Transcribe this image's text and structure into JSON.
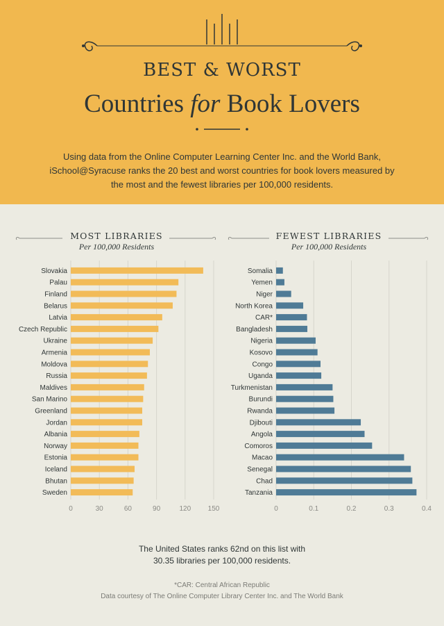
{
  "header": {
    "title_line1": "BEST & WORST",
    "title_part1": "Countries ",
    "title_em": "for",
    "title_part2": " Book Lovers",
    "intro": "Using data from the Online Computer Learning Center Inc. and the World Bank, iSchool@Syracuse ranks the 20 best and worst countries for book lovers measured by the most and the fewest libraries per 100,000 residents.",
    "colors": {
      "background": "#f1b84f",
      "text": "#2f3636"
    }
  },
  "chart_data": [
    {
      "type": "bar",
      "orientation": "horizontal",
      "title": "MOST LIBRARIES",
      "subtitle": "Per 100,000 Residents",
      "color": "#f2bb58",
      "categories": [
        "Slovakia",
        "Palau",
        "Finland",
        "Belarus",
        "Latvia",
        "Czech Republic",
        "Ukraine",
        "Armenia",
        "Moldova",
        "Russia",
        "Maldives",
        "San Marino",
        "Greenland",
        "Jordan",
        "Albania",
        "Norway",
        "Estonia",
        "Iceland",
        "Bhutan",
        "Sweden"
      ],
      "values": [
        139,
        113,
        111,
        107,
        96,
        92,
        86,
        83,
        81,
        80,
        77,
        76,
        75,
        75,
        72,
        71,
        71,
        67,
        66,
        65
      ],
      "xlim": [
        0,
        150
      ],
      "xticks": [
        "0",
        "30",
        "60",
        "90",
        "120",
        "150"
      ]
    },
    {
      "type": "bar",
      "orientation": "horizontal",
      "title": "FEWEST LIBRARIES",
      "subtitle": "Per 100,000 Residents",
      "color": "#4f7b96",
      "categories": [
        "Somalia",
        "Yemen",
        "Niger",
        "North Korea",
        "CAR*",
        "Bangladesh",
        "Nigeria",
        "Kosovo",
        "Congo",
        "Uganda",
        "Turkmenistan",
        "Burundi",
        "Rwanda",
        "Djibouti",
        "Angola",
        "Comoros",
        "Macao",
        "Senegal",
        "Chad",
        "Tanzania"
      ],
      "values": [
        0.018,
        0.022,
        0.04,
        0.072,
        0.082,
        0.083,
        0.105,
        0.11,
        0.118,
        0.12,
        0.15,
        0.152,
        0.155,
        0.225,
        0.235,
        0.255,
        0.34,
        0.358,
        0.362,
        0.373
      ],
      "xlim": [
        0,
        0.4
      ],
      "xticks": [
        "0",
        "0.1",
        "0.2",
        "0.3",
        "0.4"
      ]
    }
  ],
  "footer": {
    "us_line1": "The United States ranks 62nd on this list with",
    "us_line2": "30.35 libraries per 100,000 residents.",
    "car_note": "*CAR: Central African Republic",
    "credit": "Data courtesy of The Online Computer Library Center Inc. and The World Bank"
  }
}
